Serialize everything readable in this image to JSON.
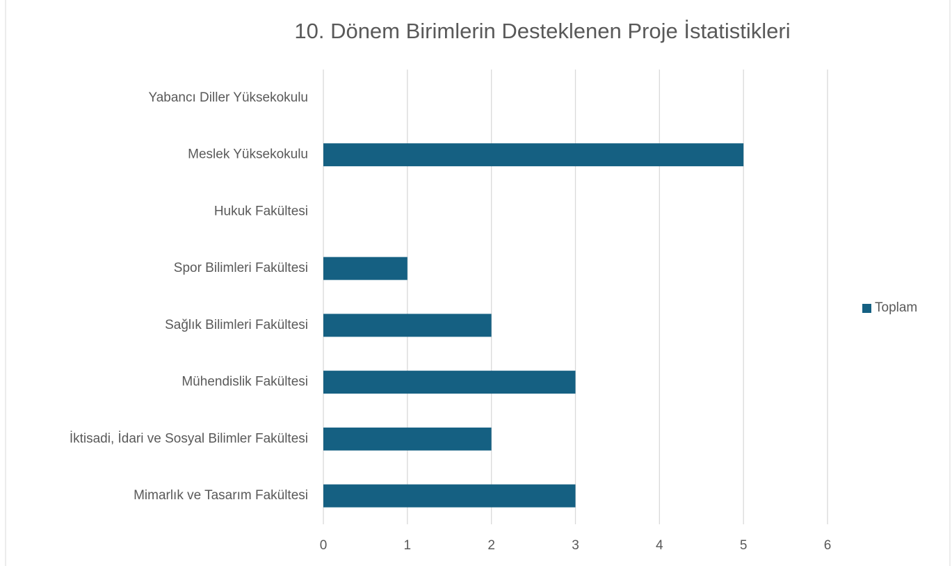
{
  "chart_data": {
    "type": "barh",
    "title": "10. Dönem Birimlerin Desteklenen Proje İstatistikleri",
    "categories": [
      "Yabancı Diller Yüksekokulu",
      "Meslek Yüksekokulu",
      "Hukuk Fakültesi",
      "Spor Bilimleri Fakültesi",
      "Sağlık Bilimleri Fakültesi",
      "Mühendislik Fakültesi",
      "İktisadi, İdari ve Sosyal Bilimler Fakültesi",
      "Mimarlık ve Tasarım Fakültesi"
    ],
    "series": [
      {
        "name": "Toplam",
        "color": "#156082",
        "values": [
          0,
          5,
          0,
          1,
          2,
          3,
          2,
          3
        ]
      }
    ],
    "xlim": [
      0,
      6
    ],
    "xticks": [
      0,
      1,
      2,
      3,
      4,
      5,
      6
    ],
    "grid": true,
    "legend": "right"
  }
}
